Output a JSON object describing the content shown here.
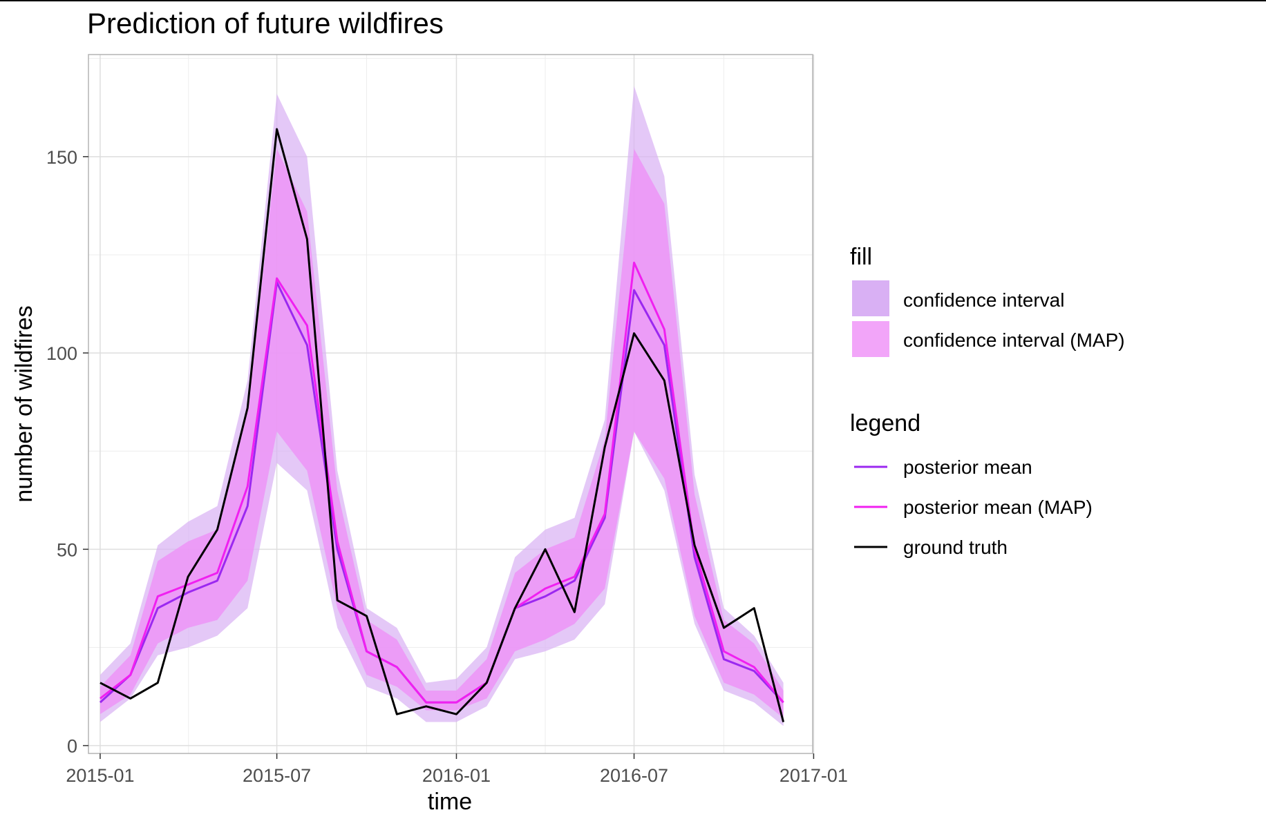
{
  "chart_data": {
    "type": "line",
    "title": "Prediction of future wildfires",
    "xlabel": "time",
    "ylabel": "number of wildfires",
    "ylim": [
      -2,
      176
    ],
    "xlim": [
      "2014-12-20",
      "2016-12-31"
    ],
    "grid": true,
    "legend_placement": "right",
    "x_ticks": [
      "2015-01",
      "2015-07",
      "2016-01",
      "2016-07",
      "2017-01"
    ],
    "y_ticks": [
      0,
      50,
      100,
      150
    ],
    "x": [
      "2015-01-01",
      "2015-02-01",
      "2015-03-01",
      "2015-04-01",
      "2015-05-01",
      "2015-06-01",
      "2015-07-01",
      "2015-08-01",
      "2015-09-01",
      "2015-10-01",
      "2015-11-01",
      "2015-12-01",
      "2016-01-01",
      "2016-02-01",
      "2016-03-01",
      "2016-04-01",
      "2016-05-01",
      "2016-06-01",
      "2016-07-01",
      "2016-08-01",
      "2016-09-01",
      "2016-10-01",
      "2016-11-01",
      "2016-12-01"
    ],
    "ribbons": [
      {
        "legend_label": "confidence interval",
        "color": "#d9b0f4",
        "lower": [
          6,
          12,
          23,
          25,
          28,
          35,
          72,
          65,
          30,
          15,
          12,
          6,
          6,
          10,
          22,
          24,
          27,
          36,
          80,
          65,
          31,
          14,
          11,
          5
        ],
        "upper": [
          18,
          26,
          51,
          57,
          61,
          93,
          166,
          150,
          70,
          35,
          30,
          16,
          17,
          25,
          48,
          55,
          58,
          83,
          168,
          145,
          69,
          35,
          28,
          16
        ]
      },
      {
        "legend_label": "confidence interval (MAP)",
        "color": "#ef8ef7",
        "lower": [
          8,
          13,
          26,
          30,
          32,
          42,
          80,
          70,
          35,
          18,
          15,
          9,
          9,
          12,
          24,
          27,
          31,
          40,
          80,
          68,
          33,
          16,
          13,
          7
        ],
        "upper": [
          15,
          23,
          47,
          52,
          55,
          85,
          152,
          136,
          65,
          32,
          27,
          14,
          14,
          22,
          44,
          50,
          53,
          78,
          152,
          138,
          64,
          32,
          26,
          14
        ]
      }
    ],
    "series": [
      {
        "name": "posterior mean",
        "color": "#9b28f0",
        "values": [
          11,
          18,
          35,
          39,
          42,
          61,
          118,
          102,
          50,
          24,
          20,
          11,
          11,
          16,
          35,
          38,
          42,
          58,
          116,
          102,
          48,
          22,
          19,
          11
        ]
      },
      {
        "name": "posterior mean (MAP)",
        "color": "#f020f0",
        "values": [
          12,
          18,
          38,
          41,
          44,
          66,
          119,
          107,
          52,
          24,
          20,
          11,
          11,
          16,
          35,
          40,
          43,
          59,
          123,
          106,
          50,
          24,
          20,
          11
        ]
      },
      {
        "name": "ground truth",
        "color": "#000000",
        "values": [
          16,
          12,
          16,
          43,
          55,
          86,
          157,
          129,
          37,
          33,
          8,
          10,
          8,
          16,
          35,
          50,
          34,
          76,
          105,
          93,
          51,
          30,
          35,
          6
        ]
      }
    ],
    "legend": {
      "fill_title": "fill",
      "fill_items": [
        "confidence interval",
        "confidence interval (MAP)"
      ],
      "line_title": "legend",
      "line_items": [
        "posterior mean",
        "posterior mean (MAP)",
        "ground truth"
      ]
    }
  }
}
